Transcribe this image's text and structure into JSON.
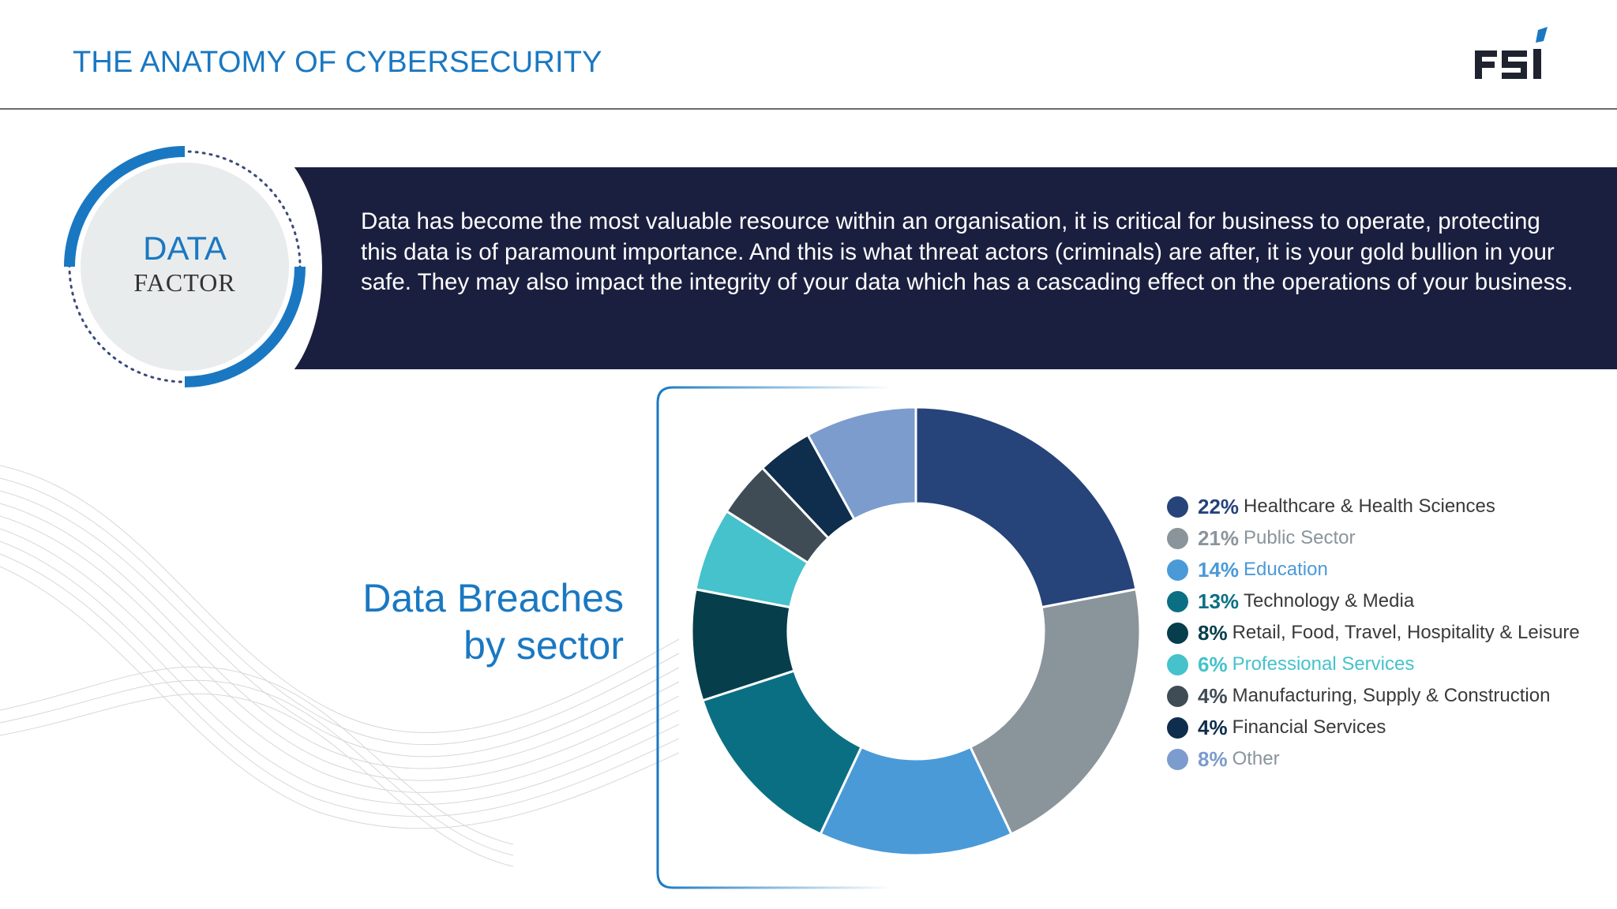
{
  "header": {
    "title": "THE ANATOMY OF CYBERSECURITY",
    "logo_text": "FSI"
  },
  "badge": {
    "title": "DATA",
    "subtitle": "FACTOR"
  },
  "banner": {
    "text": "Data has become the most valuable resource within an organisation, it is critical for business to operate, protecting this data is of paramount importance.  And this is what threat actors (criminals) are after, it is your gold bullion in your safe. They may also impact the integrity of your data which has a cascading effect on the operations of your business."
  },
  "section": {
    "title_line1": "Data Breaches",
    "title_line2": "by sector"
  },
  "colors": {
    "accent": "#1a78c2",
    "banner_bg": "#1b1f3f"
  },
  "chart_data": {
    "type": "pie",
    "title": "",
    "categories": [
      "Healthcare & Health Sciences",
      "Public Sector",
      "Education",
      "Technology & Media",
      "Retail, Food, Travel, Hospitality & Leisure",
      "Professional Services",
      "Manufacturing, Supply & Construction",
      "Financial Services",
      "Other"
    ],
    "values": [
      22,
      21,
      14,
      13,
      8,
      6,
      4,
      4,
      8
    ],
    "value_labels": [
      "22%",
      "21%",
      "14%",
      "13%",
      "8%",
      "6%",
      "4%",
      "4%",
      "8%"
    ],
    "colors": [
      "#26437a",
      "#8a949b",
      "#4a9ad8",
      "#0b6f83",
      "#063e4c",
      "#45c2cc",
      "#404c55",
      "#0f2d4d",
      "#7b9ccc"
    ],
    "label_colors": [
      "#26437a",
      "#8a949b",
      "#4a9ad8",
      "#0b6f83",
      "#063e4c",
      "#45c2cc",
      "#404c55",
      "#0f2d4d",
      "#7b9ccc"
    ],
    "text_colors": [
      "#3a3a3a",
      "#8a949b",
      "#4a9ad8",
      "#3a3a3a",
      "#3a3a3a",
      "#45c2cc",
      "#3a3a3a",
      "#3a3a3a",
      "#8a949b"
    ],
    "donut": true,
    "legend": "right"
  }
}
